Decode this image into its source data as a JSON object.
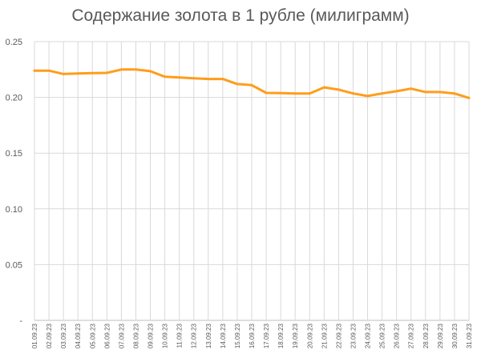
{
  "chart_data": {
    "type": "line",
    "title": "Содержание золота в 1 рубле (милиграмм)",
    "xlabel": "",
    "ylabel": "",
    "categories": [
      "01.09.23",
      "02.09.23",
      "03.09.23",
      "04.09.23",
      "05.09.23",
      "06.09.23",
      "07.09.23",
      "08.09.23",
      "09.09.23",
      "10.09.23",
      "11.09.23",
      "12.09.23",
      "13.09.23",
      "14.09.23",
      "15.09.23",
      "16.09.23",
      "17.09.23",
      "18.09.23",
      "19.09.23",
      "20.09.23",
      "21.09.23",
      "22.09.23",
      "23.09.23",
      "24.09.23",
      "25.09.23",
      "26.09.23",
      "27.09.23",
      "28.09.23",
      "29.09.23",
      "30.09.23",
      "31.09.23"
    ],
    "series": [
      {
        "values": [
          0.224,
          0.224,
          0.221,
          0.2215,
          0.2218,
          0.222,
          0.225,
          0.225,
          0.2235,
          0.2185,
          0.2178,
          0.2172,
          0.2165,
          0.2165,
          0.212,
          0.211,
          0.204,
          0.2038,
          0.2035,
          0.2035,
          0.209,
          0.207,
          0.2035,
          0.2012,
          0.2035,
          0.2055,
          0.2078,
          0.2048,
          0.2048,
          0.2035,
          0.1995
        ]
      }
    ],
    "yticks": [
      "-",
      "0.05",
      "0.10",
      "0.15",
      "0.20",
      "0.25"
    ],
    "ylim": [
      0,
      0.25
    ],
    "grid": true,
    "colors": {
      "line": "#ff9d1c",
      "grid": "#d9d9d9",
      "axis": "#bfbfbf",
      "text": "#595959"
    }
  }
}
